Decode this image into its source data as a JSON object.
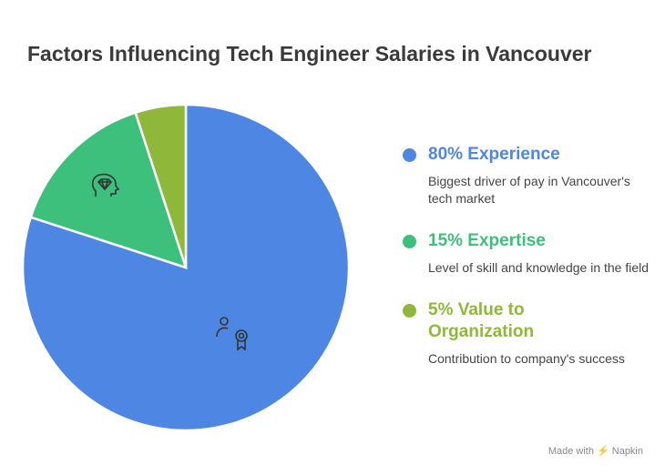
{
  "chart_data": {
    "type": "pie",
    "title": "Factors Influencing Tech Engineer Salaries in Vancouver",
    "start_angle": "12 o'clock, clockwise",
    "legend_position": "right",
    "slices": [
      {
        "label": "80% Experience",
        "value": 80,
        "color": "#4e86e4",
        "description": "Biggest driver of pay in Vancouver's tech market",
        "icon": "person-award-icon"
      },
      {
        "label": "15% Expertise",
        "value": 15,
        "color": "#3dc07c",
        "description": "Level of skill and knowledge in the field",
        "icon": "head-diamond-icon"
      },
      {
        "label": "5% Value to Organization",
        "value": 5,
        "color": "#8fb83a",
        "description": "Contribution to company's success",
        "icon": ""
      }
    ]
  },
  "footer": "Made with ⚡ Napkin"
}
